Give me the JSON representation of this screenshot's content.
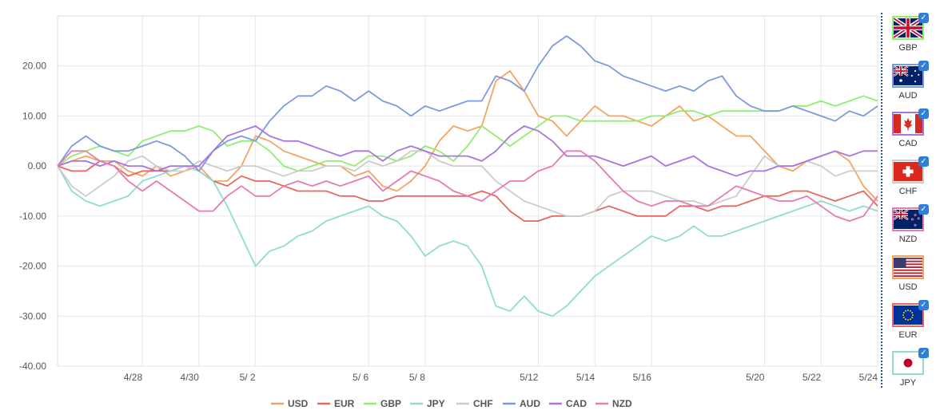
{
  "chart_data": {
    "type": "line",
    "title": "",
    "xlabel": "",
    "ylabel": "",
    "ylim": [
      -40,
      30
    ],
    "xlim": [
      0,
      29
    ],
    "yticks": [
      20,
      10,
      0,
      -10,
      -20,
      -30,
      -40
    ],
    "ytick_labels": [
      "20.00",
      "10.00",
      "0.00",
      "-10.00",
      "-20.00",
      "-30.00",
      "-40.00"
    ],
    "xticks": [
      {
        "x": 3,
        "label": "4/28"
      },
      {
        "x": 5,
        "label": "4/30"
      },
      {
        "x": 7,
        "label": "5/ 2"
      },
      {
        "x": 11,
        "label": "5/ 6"
      },
      {
        "x": 13,
        "label": "5/ 8"
      },
      {
        "x": 17,
        "label": "5/12"
      },
      {
        "x": 19,
        "label": "5/14"
      },
      {
        "x": 21,
        "label": "5/16"
      },
      {
        "x": 25,
        "label": "5/20"
      },
      {
        "x": 27,
        "label": "5/22"
      },
      {
        "x": 29,
        "label": "5/24"
      }
    ],
    "grid": true,
    "legend_position": "bottom",
    "series": [
      {
        "name": "USD",
        "color": "#f4a460",
        "x": [
          0,
          0.5,
          1,
          1.5,
          2,
          2.5,
          3,
          3.5,
          4,
          4.5,
          5,
          5.5,
          6,
          6.5,
          7,
          7.5,
          8,
          8.5,
          9,
          9.5,
          10,
          10.5,
          11,
          11.5,
          12,
          12.5,
          13,
          13.5,
          14,
          14.5,
          15,
          15.5,
          16,
          16.5,
          17,
          17.5,
          18,
          18.5,
          19,
          19.5,
          20,
          20.5,
          21,
          21.5,
          22,
          22.5,
          23,
          23.5,
          24,
          24.5,
          25,
          25.5,
          26,
          26.5,
          27,
          27.5,
          28,
          28.5,
          29
        ],
        "y": [
          0,
          1,
          2,
          1,
          1,
          -1,
          -2,
          0,
          -2,
          -1,
          0,
          -3,
          -3,
          0,
          6,
          5,
          3,
          2,
          1,
          0,
          0,
          -2,
          -1,
          -4,
          -5,
          -3,
          0,
          5,
          8,
          7,
          8,
          17,
          19,
          15,
          10,
          9,
          6,
          9,
          12,
          10,
          10,
          9,
          8,
          10,
          12,
          9,
          10,
          8,
          6,
          6,
          3,
          0,
          -1,
          1,
          2,
          3,
          1,
          -4,
          -7
        ]
      },
      {
        "name": "EUR",
        "color": "#e8665e",
        "x": [
          0,
          0.5,
          1,
          1.5,
          2,
          2.5,
          3,
          3.5,
          4,
          4.5,
          5,
          5.5,
          6,
          6.5,
          7,
          7.5,
          8,
          8.5,
          9,
          9.5,
          10,
          10.5,
          11,
          11.5,
          12,
          12.5,
          13,
          13.5,
          14,
          14.5,
          15,
          15.5,
          16,
          16.5,
          17,
          17.5,
          18,
          18.5,
          19,
          19.5,
          20,
          20.5,
          21,
          21.5,
          22,
          22.5,
          23,
          23.5,
          24,
          24.5,
          25,
          25.5,
          26,
          26.5,
          27,
          27.5,
          28,
          28.5,
          29
        ],
        "y": [
          0,
          -1,
          -1,
          1,
          0,
          -2,
          -1,
          -1,
          -1,
          0,
          -1,
          -3,
          -4,
          -2,
          -3,
          -3,
          -4,
          -5,
          -5,
          -5,
          -6,
          -6,
          -7,
          -7,
          -6,
          -6,
          -6,
          -6,
          -6,
          -6,
          -5,
          -6,
          -9,
          -11,
          -11,
          -10,
          -10,
          -10,
          -9,
          -8,
          -9,
          -10,
          -10,
          -10,
          -8,
          -8,
          -9,
          -8,
          -8,
          -7,
          -6,
          -6,
          -5,
          -5,
          -6,
          -7,
          -6,
          -5,
          -8
        ]
      },
      {
        "name": "GBP",
        "color": "#90ee70",
        "x": [
          0,
          0.5,
          1,
          1.5,
          2,
          2.5,
          3,
          3.5,
          4,
          4.5,
          5,
          5.5,
          6,
          6.5,
          7,
          7.5,
          8,
          8.5,
          9,
          9.5,
          10,
          10.5,
          11,
          11.5,
          12,
          12.5,
          13,
          13.5,
          14,
          14.5,
          15,
          15.5,
          16,
          16.5,
          17,
          17.5,
          18,
          18.5,
          19,
          19.5,
          20,
          20.5,
          21,
          21.5,
          22,
          22.5,
          23,
          23.5,
          24,
          24.5,
          25,
          25.5,
          26,
          26.5,
          27,
          27.5,
          28,
          28.5,
          29
        ],
        "y": [
          0,
          2,
          3,
          4,
          3,
          2,
          5,
          6,
          7,
          7,
          8,
          7,
          4,
          5,
          5,
          3,
          0,
          -1,
          0,
          1,
          1,
          0,
          2,
          2,
          1,
          2,
          4,
          3,
          1,
          4,
          8,
          6,
          4,
          6,
          8,
          10,
          10,
          9,
          9,
          9,
          9,
          9,
          10,
          10,
          11,
          11,
          10,
          11,
          11,
          11,
          11,
          11,
          12,
          12,
          13,
          12,
          13,
          14,
          13
        ]
      },
      {
        "name": "JPY",
        "color": "#8fdcd2",
        "x": [
          0,
          0.5,
          1,
          1.5,
          2,
          2.5,
          3,
          3.5,
          4,
          4.5,
          5,
          5.5,
          6,
          6.5,
          7,
          7.5,
          8,
          8.5,
          9,
          9.5,
          10,
          10.5,
          11,
          11.5,
          12,
          12.5,
          13,
          13.5,
          14,
          14.5,
          15,
          15.5,
          16,
          16.5,
          17,
          17.5,
          18,
          18.5,
          19,
          19.5,
          20,
          20.5,
          21,
          21.5,
          22,
          22.5,
          23,
          23.5,
          24,
          24.5,
          25,
          25.5,
          26,
          26.5,
          27,
          27.5,
          28,
          28.5,
          29
        ],
        "y": [
          0,
          -5,
          -7,
          -8,
          -7,
          -6,
          -3,
          -2,
          -1,
          0,
          -1,
          -3,
          -8,
          -14,
          -20,
          -17,
          -16,
          -14,
          -13,
          -11,
          -10,
          -9,
          -8,
          -10,
          -11,
          -14,
          -18,
          -16,
          -15,
          -16,
          -20,
          -28,
          -29,
          -26,
          -29,
          -30,
          -28,
          -25,
          -22,
          -20,
          -18,
          -16,
          -14,
          -15,
          -14,
          -12,
          -14,
          -14,
          -13,
          -12,
          -11,
          -10,
          -9,
          -8,
          -7,
          -8,
          -9,
          -8,
          -9
        ]
      },
      {
        "name": "CHF",
        "color": "#cccccc",
        "x": [
          0,
          0.5,
          1,
          1.5,
          2,
          2.5,
          3,
          3.5,
          4,
          4.5,
          5,
          5.5,
          6,
          6.5,
          7,
          7.5,
          8,
          8.5,
          9,
          9.5,
          10,
          10.5,
          11,
          11.5,
          12,
          12.5,
          13,
          13.5,
          14,
          14.5,
          15,
          15.5,
          16,
          16.5,
          17,
          17.5,
          18,
          18.5,
          19,
          19.5,
          20,
          20.5,
          21,
          21.5,
          22,
          22.5,
          23,
          23.5,
          24,
          24.5,
          25,
          25.5,
          26,
          26.5,
          27,
          27.5,
          28,
          28.5,
          29
        ],
        "y": [
          0,
          -4,
          -6,
          -4,
          -2,
          1,
          2,
          0,
          -1,
          -1,
          1,
          0,
          -1,
          0,
          0,
          -1,
          -2,
          -1,
          -1,
          0,
          0,
          -1,
          1,
          0,
          1,
          3,
          3,
          1,
          0,
          0,
          0,
          -3,
          -5,
          -7,
          -8,
          -9,
          -10,
          -10,
          -9,
          -6,
          -5,
          -5,
          -5,
          -6,
          -7,
          -7,
          -8,
          -7,
          -6,
          -2,
          2,
          0,
          0,
          1,
          0,
          -2,
          -1,
          -1,
          -1
        ]
      },
      {
        "name": "AUD",
        "color": "#7b9be0",
        "x": [
          0,
          0.5,
          1,
          1.5,
          2,
          2.5,
          3,
          3.5,
          4,
          4.5,
          5,
          5.5,
          6,
          6.5,
          7,
          7.5,
          8,
          8.5,
          9,
          9.5,
          10,
          10.5,
          11,
          11.5,
          12,
          12.5,
          13,
          13.5,
          14,
          14.5,
          15,
          15.5,
          16,
          16.5,
          17,
          17.5,
          18,
          18.5,
          19,
          19.5,
          20,
          20.5,
          21,
          21.5,
          22,
          22.5,
          23,
          23.5,
          24,
          24.5,
          25,
          25.5,
          26,
          26.5,
          27,
          27.5,
          28,
          28.5,
          29
        ],
        "y": [
          0,
          4,
          6,
          4,
          3,
          3,
          4,
          5,
          4,
          2,
          -1,
          3,
          5,
          6,
          5,
          9,
          12,
          14,
          14,
          16,
          15,
          13,
          15,
          13,
          12,
          10,
          12,
          11,
          12,
          13,
          13,
          18,
          17,
          15,
          20,
          24,
          26,
          24,
          21,
          20,
          18,
          17,
          16,
          15,
          16,
          15,
          17,
          18,
          14,
          12,
          11,
          11,
          12,
          11,
          10,
          9,
          11,
          10,
          12
        ]
      },
      {
        "name": "CAD",
        "color": "#a974e0",
        "x": [
          0,
          0.5,
          1,
          1.5,
          2,
          2.5,
          3,
          3.5,
          4,
          4.5,
          5,
          5.5,
          6,
          6.5,
          7,
          7.5,
          8,
          8.5,
          9,
          9.5,
          10,
          10.5,
          11,
          11.5,
          12,
          12.5,
          13,
          13.5,
          14,
          14.5,
          15,
          15.5,
          16,
          16.5,
          17,
          17.5,
          18,
          18.5,
          19,
          19.5,
          20,
          20.5,
          21,
          21.5,
          22,
          22.5,
          23,
          23.5,
          24,
          24.5,
          25,
          25.5,
          26,
          26.5,
          27,
          27.5,
          28,
          28.5,
          29
        ],
        "y": [
          0,
          1,
          1,
          0,
          1,
          0,
          0,
          -1,
          0,
          0,
          0,
          3,
          6,
          7,
          8,
          6,
          5,
          5,
          4,
          3,
          2,
          3,
          3,
          1,
          3,
          4,
          3,
          2,
          2,
          2,
          1,
          3,
          6,
          8,
          7,
          5,
          2,
          2,
          2,
          1,
          0,
          1,
          2,
          0,
          1,
          2,
          0,
          -1,
          -2,
          -1,
          -1,
          0,
          0,
          1,
          2,
          3,
          2,
          3,
          3
        ]
      },
      {
        "name": "NZD",
        "color": "#e67ab2",
        "x": [
          0,
          0.5,
          1,
          1.5,
          2,
          2.5,
          3,
          3.5,
          4,
          4.5,
          5,
          5.5,
          6,
          6.5,
          7,
          7.5,
          8,
          8.5,
          9,
          9.5,
          10,
          10.5,
          11,
          11.5,
          12,
          12.5,
          13,
          13.5,
          14,
          14.5,
          15,
          15.5,
          16,
          16.5,
          17,
          17.5,
          18,
          18.5,
          19,
          19.5,
          20,
          20.5,
          21,
          21.5,
          22,
          22.5,
          23,
          23.5,
          24,
          24.5,
          25,
          25.5,
          26,
          26.5,
          27,
          27.5,
          28,
          28.5,
          29
        ],
        "y": [
          0,
          3,
          3,
          1,
          0,
          -3,
          -5,
          -3,
          -5,
          -7,
          -9,
          -9,
          -6,
          -4,
          -6,
          -6,
          -4,
          -3,
          -4,
          -3,
          -4,
          -3,
          -2,
          -5,
          -3,
          -1,
          -2,
          -3,
          -5,
          -6,
          -7,
          -5,
          -3,
          -3,
          -1,
          0,
          3,
          3,
          1,
          -2,
          -5,
          -7,
          -8,
          -7,
          -7,
          -8,
          -8,
          -6,
          -4,
          -5,
          -6,
          -7,
          -7,
          -6,
          -8,
          -10,
          -11,
          -10,
          -6
        ]
      }
    ]
  },
  "currency_panel": [
    {
      "code": "GBP",
      "flag": "uk-flag-icon",
      "border": "#90ee70",
      "checked": true
    },
    {
      "code": "AUD",
      "flag": "au-flag-icon",
      "border": "#7b9be0",
      "checked": true
    },
    {
      "code": "CAD",
      "flag": "ca-flag-icon",
      "border": "#a974e0",
      "checked": true
    },
    {
      "code": "CHF",
      "flag": "ch-flag-icon",
      "border": "#cccccc",
      "checked": true
    },
    {
      "code": "NZD",
      "flag": "nz-flag-icon",
      "border": "#e67ab2",
      "checked": true
    },
    {
      "code": "USD",
      "flag": "us-flag-icon",
      "border": "#f4a460",
      "checked": false
    },
    {
      "code": "EUR",
      "flag": "eu-flag-icon",
      "border": "#e8665e",
      "checked": true
    },
    {
      "code": "JPY",
      "flag": "jp-flag-icon",
      "border": "#8fdcd2",
      "checked": true
    }
  ],
  "check_glyph": "✓"
}
